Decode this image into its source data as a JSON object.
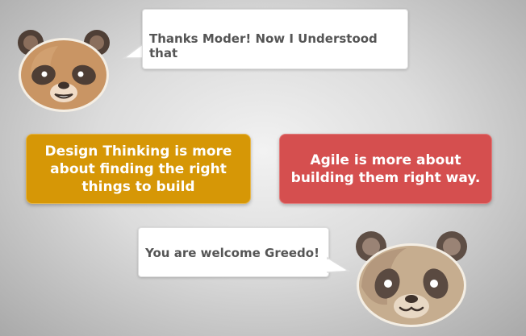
{
  "conversation": {
    "greedo_message": "Thanks Moder! Now I Understood that",
    "moder_message": "You are welcome Greedo!"
  },
  "concepts": {
    "design_thinking": "Design Thinking is more about finding the right things to build",
    "agile": "Agile is more about building them right way."
  },
  "colors": {
    "design_card": "#d69706",
    "agile_card": "#d54f4f",
    "bubble_text": "#555555"
  },
  "icons": [
    "panda-avatar-greedo",
    "panda-avatar-moder"
  ]
}
